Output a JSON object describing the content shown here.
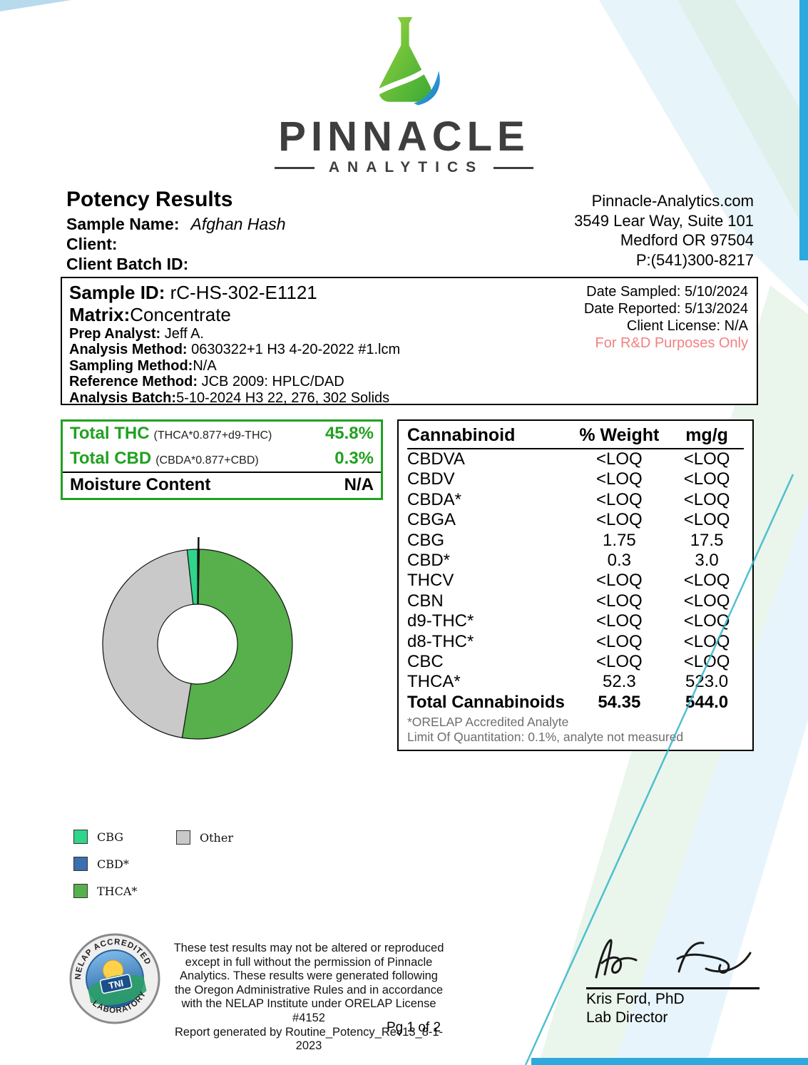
{
  "colors": {
    "accent_green": "#21a121",
    "notice_pink": "#f38181",
    "edge_blue": "#2ea9de",
    "diagonal_teal": "#35b6c9",
    "brand_gray": "#3e3e3e"
  },
  "logo": {
    "brand": "PINNACLE",
    "subtitle": "ANALYTICS"
  },
  "header": {
    "title": "Potency Results",
    "fields": [
      {
        "label": "Sample Name:",
        "value": "Afghan Hash"
      },
      {
        "label": "Client:",
        "value": ""
      },
      {
        "label": "Client Batch ID:",
        "value": ""
      }
    ],
    "contact": {
      "website": "Pinnacle-Analytics.com",
      "address_line1": "3549 Lear Way, Suite 101",
      "address_line2": "Medford OR 97504",
      "phone": "P:(541)300-8217"
    }
  },
  "sample_info": {
    "sample_id_label": "Sample ID:",
    "sample_id": "rC-HS-302-E1121",
    "matrix_label": "Matrix:",
    "matrix": "Concentrate",
    "rows": [
      {
        "label": "Prep Analyst:",
        "value": "Jeff A."
      },
      {
        "label": "Analysis Method:",
        "value": "0630322+1 H3 4-20-2022 #1.lcm"
      },
      {
        "label": "Sampling Method:",
        "value": "N/A"
      },
      {
        "label": "Reference Method:",
        "value": "JCB 2009: HPLC/DAD"
      },
      {
        "label": "Analysis Batch:",
        "value": "5-10-2024 H3 22, 276, 302 Solids"
      }
    ],
    "dates": [
      {
        "label": "Date Sampled:",
        "value": "5/10/2024"
      },
      {
        "label": "Date Reported:",
        "value": "5/13/2024"
      },
      {
        "label": "Client License:",
        "value": "N/A"
      }
    ],
    "rd_notice": "For R&D Purposes Only"
  },
  "totals": {
    "rows": [
      {
        "label": "Total THC",
        "formula": "(THCA*0.877+d9-THC)",
        "value": "45.8%"
      },
      {
        "label": "Total CBD",
        "formula": "(CBDA*0.877+CBD)",
        "value": "0.3%"
      },
      {
        "label": "Moisture Content",
        "formula": "",
        "value": "N/A"
      }
    ]
  },
  "cannabinoid_table": {
    "headers": [
      "Cannabinoid",
      "% Weight",
      "mg/g"
    ],
    "rows": [
      [
        "CBDVA",
        "<LOQ",
        "<LOQ"
      ],
      [
        "CBDV",
        "<LOQ",
        "<LOQ"
      ],
      [
        "CBDA*",
        "<LOQ",
        "<LOQ"
      ],
      [
        "CBGA",
        "<LOQ",
        "<LOQ"
      ],
      [
        "CBG",
        "1.75",
        "17.5"
      ],
      [
        "CBD*",
        "0.3",
        "3.0"
      ],
      [
        "THCV",
        "<LOQ",
        "<LOQ"
      ],
      [
        "CBN",
        "<LOQ",
        "<LOQ"
      ],
      [
        "d9-THC*",
        "<LOQ",
        "<LOQ"
      ],
      [
        "d8-THC*",
        "<LOQ",
        "<LOQ"
      ],
      [
        "CBC",
        "<LOQ",
        "<LOQ"
      ],
      [
        "THCA*",
        "52.3",
        "523.0"
      ]
    ],
    "total_row": [
      "Total Cannabinoids",
      "54.35",
      "544.0"
    ],
    "footnotes": [
      "*ORELAP Accredited Analyte",
      "Limit Of Quantitation: 0.1%, analyte not measured"
    ]
  },
  "chart_data": {
    "type": "pie",
    "donut": true,
    "start_angle_deg": 90,
    "direction": "clockwise",
    "slices": [
      {
        "label": "CBD*",
        "value": 0.3,
        "color": "#3a6fb0"
      },
      {
        "label": "THCA*",
        "value": 52.3,
        "color": "#57b04b"
      },
      {
        "label": "Other",
        "value": 45.65,
        "color": "#c9c9c9"
      },
      {
        "label": "CBG",
        "value": 1.75,
        "color": "#2fd58b"
      }
    ],
    "legend_position": "below-left"
  },
  "legend": {
    "items": [
      {
        "label": "CBG",
        "color": "#2fd58b"
      },
      {
        "label": "CBD*",
        "color": "#3a6fb0"
      },
      {
        "label": "THCA*",
        "color": "#57b04b"
      },
      {
        "label": "Other",
        "color": "#c9c9c9"
      }
    ]
  },
  "footer": {
    "disclaimer_lines": [
      "These test results may not be altered or reproduced",
      "except in full without the permission of Pinnacle",
      "Analytics. These results were generated following",
      "the Oregon Administrative Rules and in accordance",
      "with the NELAP Institute under ORELAP License #4152",
      "Report generated by Routine_Potency_Rev13_8-1-2023"
    ],
    "page_label": "Pg 1 of 2",
    "signatory_name": "Kris Ford, PhD",
    "signatory_title": "Lab Director",
    "seal": {
      "top": "NELAP ACCREDITED",
      "bottom": "LABORATORY",
      "center": "TNI"
    }
  }
}
